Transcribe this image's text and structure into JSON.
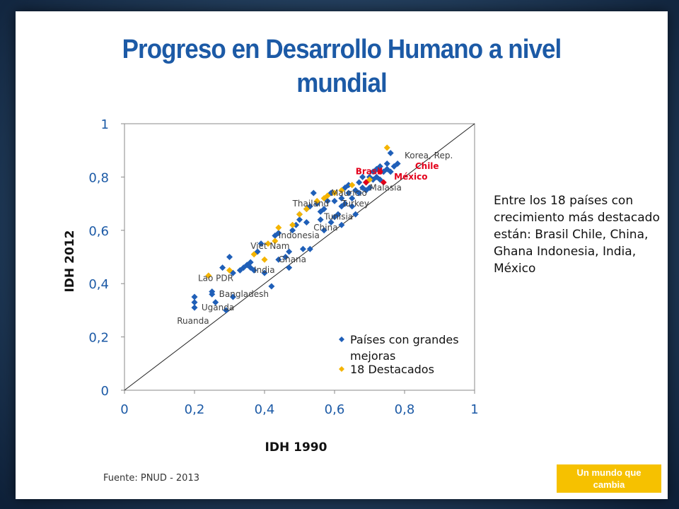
{
  "slide": {
    "title_line1": "Progreso en Desarrollo Humano a nivel",
    "title_line2": "mundial",
    "side_note": "Entre los 18 países con crecimiento más destacado están: Brasil Chile, China, Ghana Indonesia, India, México",
    "source": "Fuente:  PNUD - 2013",
    "badge_line1": "Un mundo que",
    "badge_line2": "cambia"
  },
  "chart_data": {
    "type": "scatter",
    "title": "",
    "xlabel": "IDH 1990",
    "ylabel": "IDH 2012",
    "xlim": [
      0,
      1
    ],
    "ylim": [
      0,
      1
    ],
    "xticks": [
      "0",
      "0,2",
      "0,4",
      "0,6",
      "0,8",
      "1"
    ],
    "yticks": [
      "0",
      "0,2",
      "0,4",
      "0,6",
      "0,8",
      "1"
    ],
    "grid": false,
    "reference_line": {
      "from": [
        0,
        0
      ],
      "to": [
        1,
        1
      ]
    },
    "legend_position": "bottom-right",
    "colors": {
      "blue": "#1f5fb8",
      "gold": "#f4b400",
      "red": "#e3001b",
      "label": "#404040"
    },
    "series": [
      {
        "name": "Países con grandes mejoras",
        "color": "#1f5fb8",
        "points": [
          [
            0.2,
            0.31
          ],
          [
            0.2,
            0.33
          ],
          [
            0.2,
            0.35
          ],
          [
            0.25,
            0.36
          ],
          [
            0.25,
            0.37
          ],
          [
            0.26,
            0.33
          ],
          [
            0.28,
            0.46
          ],
          [
            0.29,
            0.3
          ],
          [
            0.3,
            0.5
          ],
          [
            0.31,
            0.44
          ],
          [
            0.31,
            0.35
          ],
          [
            0.33,
            0.45
          ],
          [
            0.34,
            0.46
          ],
          [
            0.35,
            0.47
          ],
          [
            0.36,
            0.46
          ],
          [
            0.36,
            0.48
          ],
          [
            0.37,
            0.45
          ],
          [
            0.38,
            0.52
          ],
          [
            0.39,
            0.55
          ],
          [
            0.4,
            0.44
          ],
          [
            0.42,
            0.39
          ],
          [
            0.43,
            0.58
          ],
          [
            0.44,
            0.49
          ],
          [
            0.44,
            0.59
          ],
          [
            0.46,
            0.5
          ],
          [
            0.47,
            0.52
          ],
          [
            0.47,
            0.46
          ],
          [
            0.48,
            0.6
          ],
          [
            0.49,
            0.62
          ],
          [
            0.5,
            0.64
          ],
          [
            0.5,
            0.66
          ],
          [
            0.51,
            0.53
          ],
          [
            0.52,
            0.63
          ],
          [
            0.53,
            0.69
          ],
          [
            0.53,
            0.53
          ],
          [
            0.54,
            0.74
          ],
          [
            0.55,
            0.7
          ],
          [
            0.56,
            0.67
          ],
          [
            0.56,
            0.64
          ],
          [
            0.57,
            0.6
          ],
          [
            0.57,
            0.68
          ],
          [
            0.58,
            0.71
          ],
          [
            0.59,
            0.74
          ],
          [
            0.59,
            0.63
          ],
          [
            0.6,
            0.71
          ],
          [
            0.61,
            0.66
          ],
          [
            0.62,
            0.72
          ],
          [
            0.62,
            0.69
          ],
          [
            0.63,
            0.76
          ],
          [
            0.63,
            0.7
          ],
          [
            0.64,
            0.74
          ],
          [
            0.64,
            0.77
          ],
          [
            0.65,
            0.72
          ],
          [
            0.66,
            0.75
          ],
          [
            0.66,
            0.66
          ],
          [
            0.67,
            0.78
          ],
          [
            0.67,
            0.74
          ],
          [
            0.68,
            0.76
          ],
          [
            0.68,
            0.8
          ],
          [
            0.69,
            0.78
          ],
          [
            0.69,
            0.75
          ],
          [
            0.7,
            0.8
          ],
          [
            0.7,
            0.76
          ],
          [
            0.71,
            0.82
          ],
          [
            0.71,
            0.79
          ],
          [
            0.72,
            0.83
          ],
          [
            0.72,
            0.8
          ],
          [
            0.73,
            0.84
          ],
          [
            0.73,
            0.79
          ],
          [
            0.74,
            0.82
          ],
          [
            0.75,
            0.83
          ],
          [
            0.75,
            0.85
          ],
          [
            0.76,
            0.82
          ],
          [
            0.76,
            0.89
          ],
          [
            0.77,
            0.84
          ],
          [
            0.78,
            0.85
          ],
          [
            0.62,
            0.62
          ],
          [
            0.65,
            0.69
          ],
          [
            0.52,
            0.68
          ],
          [
            0.6,
            0.65
          ]
        ]
      },
      {
        "name": "18 Destacados",
        "color": "#f4b400",
        "points": [
          [
            0.24,
            0.43
          ],
          [
            0.3,
            0.45
          ],
          [
            0.37,
            0.51
          ],
          [
            0.4,
            0.49
          ],
          [
            0.41,
            0.55
          ],
          [
            0.43,
            0.56
          ],
          [
            0.44,
            0.61
          ],
          [
            0.48,
            0.62
          ],
          [
            0.5,
            0.66
          ],
          [
            0.52,
            0.68
          ],
          [
            0.55,
            0.71
          ],
          [
            0.57,
            0.72
          ],
          [
            0.58,
            0.73
          ],
          [
            0.6,
            0.74
          ],
          [
            0.62,
            0.75
          ],
          [
            0.65,
            0.77
          ],
          [
            0.7,
            0.79
          ],
          [
            0.75,
            0.91
          ]
        ]
      }
    ],
    "highlights": [
      {
        "color": "#e3001b",
        "x": 0.69,
        "y": 0.78
      },
      {
        "color": "#e3001b",
        "x": 0.73,
        "y": 0.82
      },
      {
        "color": "#e3001b",
        "x": 0.74,
        "y": 0.78
      }
    ],
    "annotations": [
      {
        "text": "Korea, Rep.",
        "x": 0.8,
        "y": 0.87,
        "color": "#404040",
        "bold": false
      },
      {
        "text": "Chile",
        "x": 0.83,
        "y": 0.83,
        "color": "#e3001b",
        "bold": true
      },
      {
        "text": "Brasil",
        "x": 0.66,
        "y": 0.81,
        "color": "#e3001b",
        "bold": true
      },
      {
        "text": "México",
        "x": 0.77,
        "y": 0.79,
        "color": "#e3001b",
        "bold": true
      },
      {
        "text": "Malasia",
        "x": 0.7,
        "y": 0.75,
        "color": "#404040",
        "bold": false
      },
      {
        "text": "Mauricio",
        "x": 0.59,
        "y": 0.73,
        "color": "#404040",
        "bold": false
      },
      {
        "text": "Thailand",
        "x": 0.48,
        "y": 0.69,
        "color": "#404040",
        "bold": false
      },
      {
        "text": "Turkey",
        "x": 0.62,
        "y": 0.69,
        "color": "#404040",
        "bold": false
      },
      {
        "text": "Tunisia",
        "x": 0.57,
        "y": 0.64,
        "color": "#404040",
        "bold": false
      },
      {
        "text": "China",
        "x": 0.54,
        "y": 0.6,
        "color": "#404040",
        "bold": false
      },
      {
        "text": "Indonesia",
        "x": 0.44,
        "y": 0.57,
        "color": "#404040",
        "bold": false
      },
      {
        "text": "Viet Nam",
        "x": 0.36,
        "y": 0.53,
        "color": "#404040",
        "bold": false
      },
      {
        "text": "Ghana",
        "x": 0.44,
        "y": 0.48,
        "color": "#404040",
        "bold": false
      },
      {
        "text": "India",
        "x": 0.37,
        "y": 0.44,
        "color": "#404040",
        "bold": false
      },
      {
        "text": "Lao PDR",
        "x": 0.21,
        "y": 0.41,
        "color": "#404040",
        "bold": false
      },
      {
        "text": "Bangladesh",
        "x": 0.27,
        "y": 0.35,
        "color": "#404040",
        "bold": false
      },
      {
        "text": "Uganda",
        "x": 0.22,
        "y": 0.3,
        "color": "#404040",
        "bold": false
      },
      {
        "text": "Ruanda",
        "x": 0.15,
        "y": 0.25,
        "color": "#404040",
        "bold": false
      }
    ],
    "legend": [
      {
        "label": "Países con grandes mejoras",
        "color": "#1f5fb8"
      },
      {
        "label": "18 Destacados",
        "color": "#f4b400"
      }
    ]
  }
}
